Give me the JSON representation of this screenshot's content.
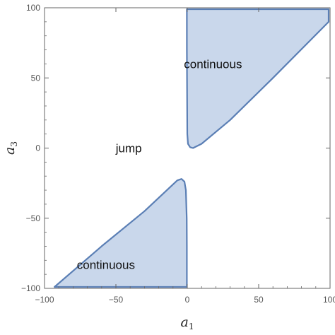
{
  "chart_data": {
    "type": "area",
    "title": "",
    "xlabel": {
      "base": "a",
      "sub": "1"
    },
    "ylabel": {
      "base": "a",
      "sub": "3"
    },
    "xlim": [
      -100,
      100
    ],
    "ylim": [
      -100,
      100
    ],
    "xticks": [
      -100,
      -50,
      0,
      50,
      100
    ],
    "yticks": [
      -100,
      -50,
      0,
      50,
      100
    ],
    "xtick_labels": [
      "−100",
      "−50",
      "0",
      "50",
      "100"
    ],
    "ytick_labels": [
      "−100",
      "−50",
      "0",
      "50",
      "100"
    ],
    "grid": false,
    "regions": [
      {
        "label": "continuous",
        "label_at": [
          18,
          60
        ],
        "polygon": [
          [
            -0.3,
            99
          ],
          [
            99,
            99
          ],
          [
            99,
            90
          ],
          [
            60,
            50
          ],
          [
            30,
            20
          ],
          [
            10,
            3
          ],
          [
            4,
            0
          ],
          [
            2,
            0.6
          ],
          [
            0.5,
            3
          ],
          [
            0,
            10
          ],
          [
            -0.1,
            30
          ],
          [
            -0.3,
            70
          ]
        ]
      },
      {
        "label": "continuous",
        "label_at": [
          -57,
          -83
        ],
        "polygon": [
          [
            -93,
            -99
          ],
          [
            -0.3,
            -99
          ],
          [
            -0.3,
            -70
          ],
          [
            -0.4,
            -50
          ],
          [
            -1,
            -30
          ],
          [
            -2,
            -24
          ],
          [
            -4,
            -22
          ],
          [
            -7,
            -23
          ],
          [
            -30,
            -45
          ],
          [
            -60,
            -70
          ]
        ]
      }
    ],
    "annotations": [
      {
        "text": "jump",
        "at": [
          -41,
          0
        ]
      }
    ],
    "colors": {
      "fill": "#c9d7eb",
      "stroke": "#5b7fb5",
      "frame": "#666666"
    }
  }
}
